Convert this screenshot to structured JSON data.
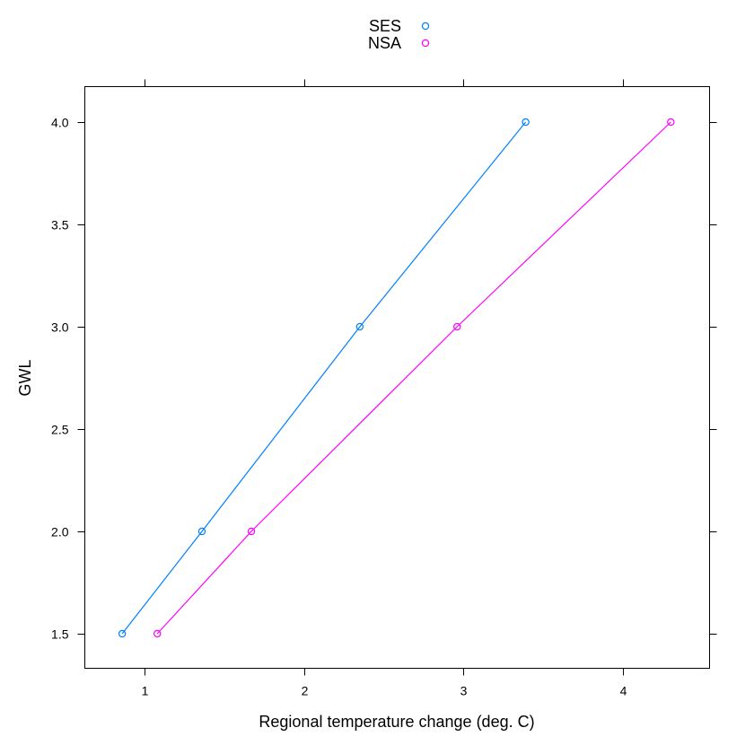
{
  "chart_data": {
    "type": "line",
    "title": "",
    "xlabel": "Regional temperature change (deg. C)",
    "ylabel": "GWL",
    "xlim": [
      0.62,
      4.55
    ],
    "ylim": [
      1.325,
      4.175
    ],
    "x_ticks": [
      1,
      2,
      3,
      4
    ],
    "y_ticks": [
      1.5,
      2.0,
      2.5,
      3.0,
      3.5,
      4.0
    ],
    "x_tick_labels": [
      "1",
      "2",
      "3",
      "4"
    ],
    "y_tick_labels": [
      "1.5",
      "2.0",
      "2.5",
      "3.0",
      "3.5",
      "4.0"
    ],
    "grid": false,
    "legend_position": "top",
    "series": [
      {
        "name": "SES",
        "color": "#0080ff",
        "marker": "open-circle",
        "points": [
          {
            "x": 0.86,
            "y": 1.5
          },
          {
            "x": 1.36,
            "y": 2.0
          },
          {
            "x": 2.35,
            "y": 3.0
          },
          {
            "x": 3.39,
            "y": 4.0
          }
        ]
      },
      {
        "name": "NSA",
        "color": "#ff00ff",
        "marker": "open-circle",
        "points": [
          {
            "x": 1.08,
            "y": 1.5
          },
          {
            "x": 1.67,
            "y": 2.0
          },
          {
            "x": 2.96,
            "y": 3.0
          },
          {
            "x": 4.3,
            "y": 4.0
          }
        ]
      }
    ]
  }
}
